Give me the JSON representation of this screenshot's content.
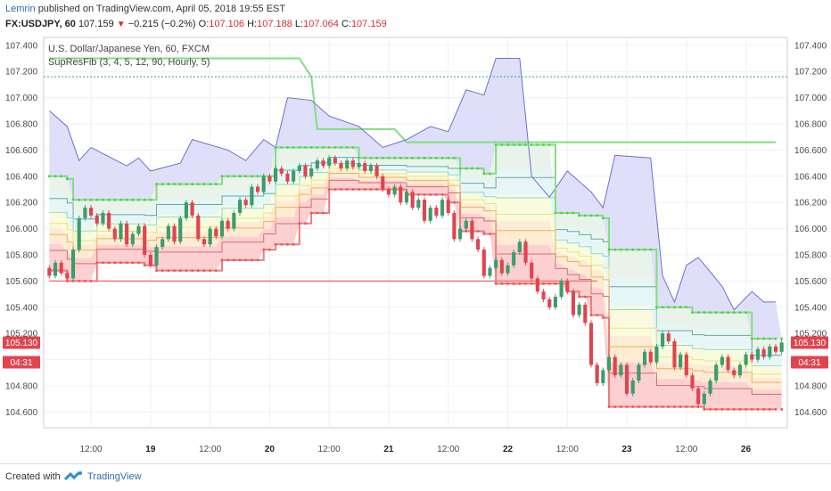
{
  "header": {
    "user": "Lemrin",
    "published_text": "published on TradingView.com, April 05, 2018 19:55 EST",
    "symbol": "FX:USDJPY, 60",
    "last": "107.159",
    "arrow": "▼",
    "change": "−0.215 (−0.2%)",
    "o_label": "O:",
    "o_value": "107.106",
    "h_label": "H:",
    "h_value": "107.188",
    "l_label": "L:",
    "l_value": "107.064",
    "c_label": "C:",
    "c_value": "107.159"
  },
  "legend": {
    "title": "U.S. Dollar/Japanese Yen, 60, FXCM",
    "indicator": "SupResFib (3, 4, 5, 12, 90, Hourly, 5)"
  },
  "footer": {
    "created_with": "Created with",
    "brand": "TradingView"
  },
  "colors": {
    "bull": "#3c9c6d",
    "bear": "#e0444f",
    "upper_band": "#6e6ed6",
    "upper_fill": "#dcdcfa",
    "resistance": "#7ee07e",
    "support": "#f07a7a",
    "support_fill": "#fcd0d0",
    "badge": "#e0444f"
  },
  "chart_data": {
    "type": "candlestick",
    "title": "U.S. Dollar/Japanese Yen, 60, FXCM",
    "ylim": [
      104.48,
      107.46
    ],
    "y_ticks": [
      "107.400",
      "107.200",
      "107.000",
      "106.800",
      "106.600",
      "106.400",
      "106.200",
      "106.000",
      "105.800",
      "105.600",
      "105.400",
      "105.200",
      "105.000",
      "104.800",
      "104.600"
    ],
    "x_ticks": [
      {
        "label": "12:00",
        "i": 7,
        "bold": false
      },
      {
        "label": "19",
        "i": 17,
        "bold": true
      },
      {
        "label": "12:00",
        "i": 27,
        "bold": false
      },
      {
        "label": "20",
        "i": 37,
        "bold": true
      },
      {
        "label": "12:00",
        "i": 47,
        "bold": false
      },
      {
        "label": "21",
        "i": 57,
        "bold": true
      },
      {
        "label": "12:00",
        "i": 67,
        "bold": false
      },
      {
        "label": "22",
        "i": 77,
        "bold": true
      },
      {
        "label": "12:00",
        "i": 87,
        "bold": false
      },
      {
        "label": "23",
        "i": 97,
        "bold": true
      },
      {
        "label": "12:00",
        "i": 107,
        "bold": false
      },
      {
        "label": "26",
        "i": 117,
        "bold": true
      }
    ],
    "dotted_level": 107.16,
    "price_badges": [
      {
        "text": "105.130",
        "value": 105.13
      },
      {
        "text": "04:31",
        "value": 104.98
      }
    ],
    "candles": [
      [
        105.7,
        105.64
      ],
      [
        105.64,
        105.74
      ],
      [
        105.74,
        105.66
      ],
      [
        105.66,
        105.62
      ],
      [
        105.62,
        105.84
      ],
      [
        105.84,
        106.08
      ],
      [
        106.08,
        106.16
      ],
      [
        106.16,
        106.1
      ],
      [
        106.1,
        106.04
      ],
      [
        106.04,
        106.12
      ],
      [
        106.12,
        106.0
      ],
      [
        106.0,
        105.92
      ],
      [
        105.92,
        106.04
      ],
      [
        106.04,
        105.88
      ],
      [
        105.88,
        105.96
      ],
      [
        105.96,
        106.02
      ],
      [
        106.02,
        105.8
      ],
      [
        105.8,
        105.72
      ],
      [
        105.72,
        105.86
      ],
      [
        105.86,
        105.92
      ],
      [
        105.92,
        106.02
      ],
      [
        106.02,
        105.9
      ],
      [
        105.9,
        106.08
      ],
      [
        106.08,
        106.2
      ],
      [
        106.2,
        106.1
      ],
      [
        106.1,
        105.92
      ],
      [
        105.92,
        105.88
      ],
      [
        105.88,
        106.0
      ],
      [
        106.0,
        105.94
      ],
      [
        105.94,
        106.06
      ],
      [
        106.06,
        106.0
      ],
      [
        106.0,
        106.12
      ],
      [
        106.12,
        106.22
      ],
      [
        106.22,
        106.18
      ],
      [
        106.18,
        106.32
      ],
      [
        106.32,
        106.28
      ],
      [
        106.28,
        106.4
      ],
      [
        106.4,
        106.36
      ],
      [
        106.36,
        106.46
      ],
      [
        106.46,
        106.42
      ],
      [
        106.42,
        106.36
      ],
      [
        106.36,
        106.44
      ],
      [
        106.44,
        106.48
      ],
      [
        106.48,
        106.4
      ],
      [
        106.4,
        106.46
      ],
      [
        106.46,
        106.52
      ],
      [
        106.52,
        106.48
      ],
      [
        106.48,
        106.54
      ],
      [
        106.54,
        106.5
      ],
      [
        106.5,
        106.46
      ],
      [
        106.46,
        106.52
      ],
      [
        106.52,
        106.47
      ],
      [
        106.47,
        106.5
      ],
      [
        106.5,
        106.44
      ],
      [
        106.44,
        106.48
      ],
      [
        106.48,
        106.4
      ],
      [
        106.4,
        106.3
      ],
      [
        106.3,
        106.26
      ],
      [
        106.26,
        106.32
      ],
      [
        106.32,
        106.2
      ],
      [
        106.2,
        106.28
      ],
      [
        106.28,
        106.16
      ],
      [
        106.16,
        106.22
      ],
      [
        106.22,
        106.06
      ],
      [
        106.06,
        106.16
      ],
      [
        106.16,
        106.1
      ],
      [
        106.1,
        106.22
      ],
      [
        106.22,
        106.12
      ],
      [
        106.12,
        105.92
      ],
      [
        105.92,
        106.0
      ],
      [
        106.0,
        106.06
      ],
      [
        106.06,
        105.92
      ],
      [
        105.92,
        105.84
      ],
      [
        105.84,
        105.64
      ],
      [
        105.64,
        105.7
      ],
      [
        105.7,
        105.76
      ],
      [
        105.76,
        105.66
      ],
      [
        105.66,
        105.72
      ],
      [
        105.72,
        105.82
      ],
      [
        105.82,
        105.9
      ],
      [
        105.9,
        105.74
      ],
      [
        105.74,
        105.62
      ],
      [
        105.62,
        105.52
      ],
      [
        105.52,
        105.46
      ],
      [
        105.46,
        105.4
      ],
      [
        105.4,
        105.48
      ],
      [
        105.48,
        105.6
      ],
      [
        105.6,
        105.52
      ],
      [
        105.52,
        105.34
      ],
      [
        105.34,
        105.42
      ],
      [
        105.42,
        105.28
      ],
      [
        105.28,
        104.96
      ],
      [
        104.96,
        104.82
      ],
      [
        104.82,
        104.92
      ],
      [
        104.92,
        105.02
      ],
      [
        105.02,
        104.88
      ],
      [
        104.88,
        104.96
      ],
      [
        104.96,
        104.74
      ],
      [
        104.74,
        104.84
      ],
      [
        104.84,
        104.96
      ],
      [
        104.96,
        105.06
      ],
      [
        105.06,
        104.98
      ],
      [
        104.98,
        105.1
      ],
      [
        105.1,
        105.2
      ],
      [
        105.2,
        105.14
      ],
      [
        105.14,
        104.94
      ],
      [
        104.94,
        105.04
      ],
      [
        105.04,
        104.88
      ],
      [
        104.88,
        104.78
      ],
      [
        104.78,
        104.66
      ],
      [
        104.66,
        104.74
      ],
      [
        104.74,
        104.84
      ],
      [
        104.84,
        104.96
      ],
      [
        104.96,
        105.02
      ],
      [
        105.02,
        104.92
      ],
      [
        104.92,
        104.88
      ],
      [
        104.88,
        104.96
      ],
      [
        104.96,
        105.04
      ],
      [
        105.04,
        105.0
      ],
      [
        105.0,
        105.08
      ],
      [
        105.08,
        105.02
      ],
      [
        105.02,
        105.1
      ],
      [
        105.1,
        105.06
      ],
      [
        105.06,
        105.13
      ]
    ],
    "upper_band": [
      {
        "i": 0,
        "v": 106.9
      },
      {
        "i": 3,
        "v": 106.78
      },
      {
        "i": 5,
        "v": 106.52
      },
      {
        "i": 7,
        "v": 106.62
      },
      {
        "i": 13,
        "v": 106.48
      },
      {
        "i": 15,
        "v": 106.54
      },
      {
        "i": 17,
        "v": 106.44
      },
      {
        "i": 22,
        "v": 106.5
      },
      {
        "i": 24,
        "v": 106.68
      },
      {
        "i": 30,
        "v": 106.6
      },
      {
        "i": 33,
        "v": 106.52
      },
      {
        "i": 36,
        "v": 106.68
      },
      {
        "i": 38,
        "v": 106.62
      },
      {
        "i": 40,
        "v": 107.0
      },
      {
        "i": 44,
        "v": 106.98
      },
      {
        "i": 47,
        "v": 106.86
      },
      {
        "i": 52,
        "v": 106.78
      },
      {
        "i": 56,
        "v": 106.62
      },
      {
        "i": 60,
        "v": 106.68
      },
      {
        "i": 64,
        "v": 106.78
      },
      {
        "i": 67,
        "v": 106.74
      },
      {
        "i": 70,
        "v": 107.06
      },
      {
        "i": 73,
        "v": 107.02
      },
      {
        "i": 75,
        "v": 107.3
      },
      {
        "i": 79,
        "v": 107.3
      },
      {
        "i": 81,
        "v": 106.4
      },
      {
        "i": 84,
        "v": 106.24
      },
      {
        "i": 87,
        "v": 106.44
      },
      {
        "i": 91,
        "v": 106.28
      },
      {
        "i": 93,
        "v": 106.16
      },
      {
        "i": 95,
        "v": 106.56
      },
      {
        "i": 101,
        "v": 106.54
      },
      {
        "i": 103,
        "v": 105.64
      },
      {
        "i": 105,
        "v": 105.44
      },
      {
        "i": 107,
        "v": 105.72
      },
      {
        "i": 109,
        "v": 105.78
      },
      {
        "i": 113,
        "v": 105.56
      },
      {
        "i": 115,
        "v": 105.38
      },
      {
        "i": 118,
        "v": 105.52
      },
      {
        "i": 120,
        "v": 105.44
      },
      {
        "i": 122,
        "v": 105.44
      }
    ],
    "resistance": [
      {
        "i": 0,
        "v": 106.4
      },
      {
        "i": 3,
        "v": 106.38
      },
      {
        "i": 4,
        "v": 106.22
      },
      {
        "i": 15,
        "v": 106.22
      },
      {
        "i": 18,
        "v": 106.34
      },
      {
        "i": 27,
        "v": 106.34
      },
      {
        "i": 29,
        "v": 106.4
      },
      {
        "i": 34,
        "v": 106.4
      },
      {
        "i": 38,
        "v": 106.62
      },
      {
        "i": 50,
        "v": 106.62
      },
      {
        "i": 52,
        "v": 106.54
      },
      {
        "i": 69,
        "v": 106.46
      },
      {
        "i": 73,
        "v": 106.42
      },
      {
        "i": 75,
        "v": 106.64
      },
      {
        "i": 82,
        "v": 106.64
      },
      {
        "i": 85,
        "v": 106.12
      },
      {
        "i": 89,
        "v": 106.1
      },
      {
        "i": 93,
        "v": 106.08
      },
      {
        "i": 94,
        "v": 105.84
      },
      {
        "i": 99,
        "v": 105.84
      },
      {
        "i": 102,
        "v": 105.4
      },
      {
        "i": 108,
        "v": 105.36
      },
      {
        "i": 116,
        "v": 105.36
      },
      {
        "i": 118,
        "v": 105.16
      },
      {
        "i": 122,
        "v": 105.16
      }
    ],
    "long_resistance": [
      {
        "i": 0,
        "v": 107.3
      },
      {
        "i": 42,
        "v": 107.3
      },
      {
        "i": 44,
        "v": 107.16
      },
      {
        "i": 45,
        "v": 106.76
      },
      {
        "i": 58,
        "v": 106.76
      },
      {
        "i": 60,
        "v": 106.66
      },
      {
        "i": 122,
        "v": 106.66
      }
    ],
    "support": [
      {
        "i": 0,
        "v": 105.68
      },
      {
        "i": 3,
        "v": 105.6
      },
      {
        "i": 5,
        "v": 105.6
      },
      {
        "i": 8,
        "v": 105.74
      },
      {
        "i": 14,
        "v": 105.74
      },
      {
        "i": 16,
        "v": 105.72
      },
      {
        "i": 18,
        "v": 105.68
      },
      {
        "i": 27,
        "v": 105.68
      },
      {
        "i": 29,
        "v": 105.76
      },
      {
        "i": 34,
        "v": 105.76
      },
      {
        "i": 36,
        "v": 105.84
      },
      {
        "i": 38,
        "v": 105.88
      },
      {
        "i": 42,
        "v": 106.04
      },
      {
        "i": 44,
        "v": 106.12
      },
      {
        "i": 47,
        "v": 106.3
      },
      {
        "i": 58,
        "v": 106.3
      },
      {
        "i": 60,
        "v": 106.26
      },
      {
        "i": 67,
        "v": 106.2
      },
      {
        "i": 69,
        "v": 105.98
      },
      {
        "i": 73,
        "v": 105.96
      },
      {
        "i": 75,
        "v": 105.58
      },
      {
        "i": 85,
        "v": 105.58
      },
      {
        "i": 87,
        "v": 105.52
      },
      {
        "i": 89,
        "v": 105.48
      },
      {
        "i": 91,
        "v": 105.34
      },
      {
        "i": 93,
        "v": 105.32
      },
      {
        "i": 94,
        "v": 104.64
      },
      {
        "i": 108,
        "v": 104.64
      },
      {
        "i": 110,
        "v": 104.62
      },
      {
        "i": 122,
        "v": 104.62
      }
    ],
    "long_support": [
      {
        "i": 0,
        "v": 105.6
      },
      {
        "i": 92,
        "v": 105.6
      }
    ]
  }
}
